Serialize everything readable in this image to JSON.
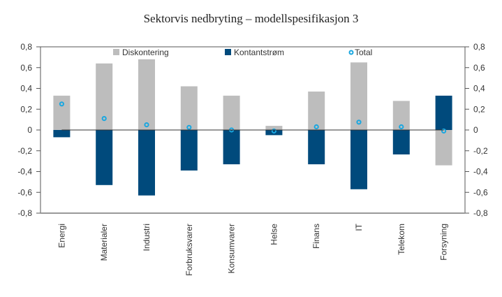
{
  "chart_data": {
    "type": "bar",
    "title": "Sektorvis nedbryting – modellspesifikasjon 3",
    "xlabel": "",
    "ylabel": "",
    "ylim": [
      -0.8,
      0.8
    ],
    "yticks": [
      "0,8",
      "0,6",
      "0,4",
      "0,2",
      "0",
      "-0,2",
      "-0,4",
      "-0,6",
      "-0,8"
    ],
    "ytick_values": [
      0.8,
      0.6,
      0.4,
      0.2,
      0,
      -0.2,
      -0.4,
      -0.6,
      -0.8
    ],
    "secondary_yticks": [
      "0,8",
      "0,6",
      "0,4",
      "0,2",
      "0",
      "-0,2",
      "-0,4",
      "-0,6",
      "-0,8"
    ],
    "grid": false,
    "stacked": true,
    "legend_position": "top",
    "categories": [
      "Energi",
      "Materialer",
      "Industri",
      "Forbruksvarer",
      "Konsumvarer",
      "Helse",
      "Finans",
      "IT",
      "Telekom",
      "Forsyning"
    ],
    "series": [
      {
        "name": "Diskontering",
        "kind": "bar",
        "color": "#bdbdbd",
        "values": [
          0.33,
          0.64,
          0.68,
          0.42,
          0.33,
          0.04,
          0.37,
          0.65,
          0.28,
          -0.34
        ]
      },
      {
        "name": "Kontantstrøm",
        "kind": "bar",
        "color": "#004a7c",
        "values": [
          -0.07,
          -0.53,
          -0.63,
          -0.39,
          -0.33,
          -0.05,
          -0.33,
          -0.57,
          -0.235,
          0.33
        ]
      },
      {
        "name": "Total",
        "kind": "marker",
        "color": "#1aa7e0",
        "values": [
          0.25,
          0.11,
          0.05,
          0.025,
          0.0,
          -0.01,
          0.03,
          0.075,
          0.03,
          -0.01
        ]
      }
    ]
  }
}
